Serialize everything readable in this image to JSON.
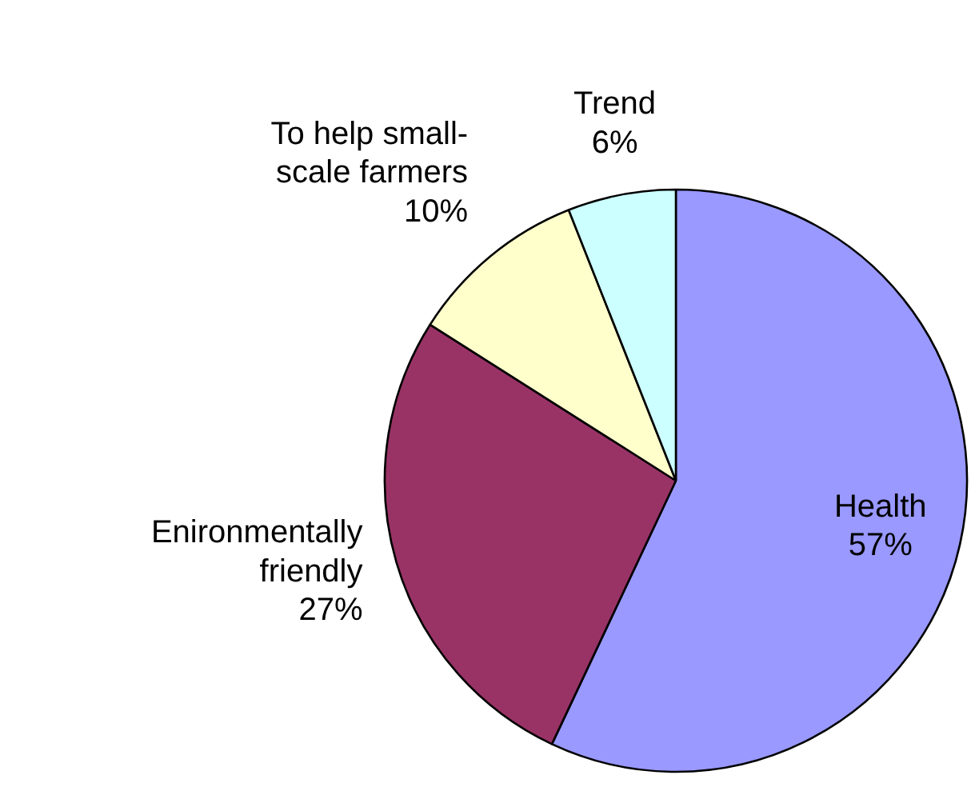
{
  "chart_data": {
    "type": "pie",
    "categories": [
      "Health",
      "Enironmentally\nfriendly",
      "To help small-\nscale farmers",
      "Trend"
    ],
    "values": [
      57,
      27,
      10,
      6
    ],
    "colors": [
      "#9999ff",
      "#993366",
      "#ffffcc",
      "#ccffff"
    ],
    "value_labels": [
      "57%",
      "27%",
      "10%",
      "6%"
    ]
  }
}
